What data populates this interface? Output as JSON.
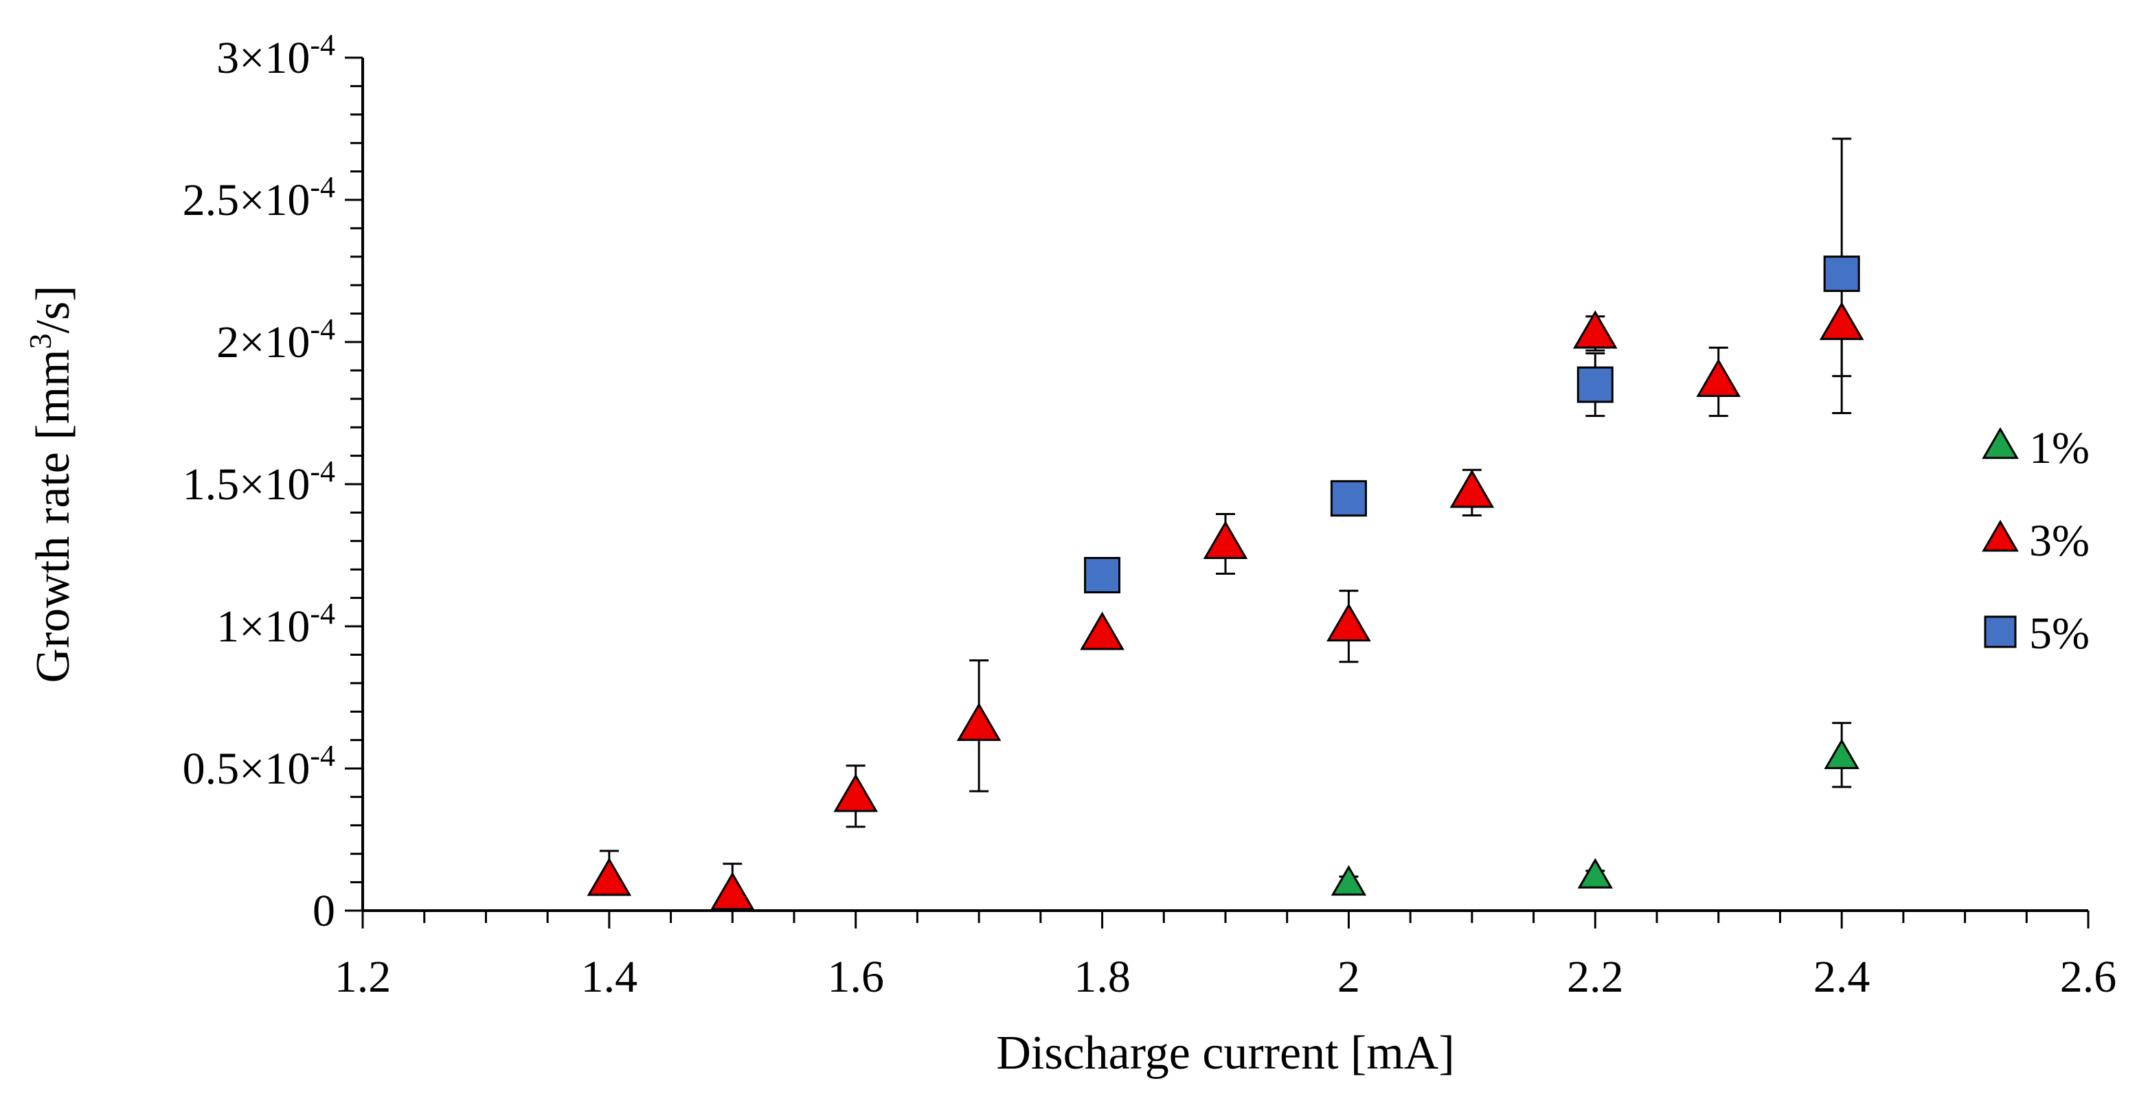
{
  "chart_data": {
    "type": "scatter",
    "xlabel": "Discharge current [mA]",
    "ylabel": {
      "prefix": "Growth rate [mm",
      "superscript": "3",
      "suffix": "/s]"
    },
    "xlim": [
      1.2,
      2.6
    ],
    "ylim": [
      0,
      0.0003
    ],
    "x_ticks": [
      {
        "value": 1.2,
        "label": "1.2"
      },
      {
        "value": 1.4,
        "label": "1.4"
      },
      {
        "value": 1.6,
        "label": "1.6"
      },
      {
        "value": 1.8,
        "label": "1.8"
      },
      {
        "value": 2.0,
        "label": "2"
      },
      {
        "value": 2.2,
        "label": "2.2"
      },
      {
        "value": 2.4,
        "label": "2.4"
      },
      {
        "value": 2.6,
        "label": "2.6"
      }
    ],
    "y_ticks": [
      {
        "value": 0,
        "mantissa": "0",
        "exponent": ""
      },
      {
        "value": 5e-05,
        "mantissa": "0.5×10",
        "exponent": "-4"
      },
      {
        "value": 0.0001,
        "mantissa": "1×10",
        "exponent": "-4"
      },
      {
        "value": 0.00015,
        "mantissa": "1.5×10",
        "exponent": "-4"
      },
      {
        "value": 0.0002,
        "mantissa": "2×10",
        "exponent": "-4"
      },
      {
        "value": 0.00025,
        "mantissa": "2.5×10",
        "exponent": "-4"
      },
      {
        "value": 0.0003,
        "mantissa": "3×10",
        "exponent": "-4"
      }
    ],
    "grid": false,
    "legend_position": "right",
    "series": [
      {
        "name": "1%",
        "marker": "triangle",
        "color": "#1aa34a",
        "points": [
          {
            "x": 2.0,
            "y": 9.5e-06,
            "err_low": 1e-06,
            "err_high": 2.5e-06
          },
          {
            "x": 2.2,
            "y": 1.2e-05,
            "err_low": 1.5e-06,
            "err_high": 2e-06
          },
          {
            "x": 2.4,
            "y": 5.4e-05,
            "err_low": 1.05e-05,
            "err_high": 1.2e-05
          }
        ]
      },
      {
        "name": "3%",
        "marker": "triangle",
        "color": "#ee0000",
        "points": [
          {
            "x": 1.4,
            "y": 1.05e-05,
            "err_low": 0,
            "err_high": 1.05e-05
          },
          {
            "x": 1.5,
            "y": 5.5e-06,
            "err_low": 0,
            "err_high": 1.1e-05
          },
          {
            "x": 1.6,
            "y": 4e-05,
            "err_low": 1.05e-05,
            "err_high": 1.1e-05
          },
          {
            "x": 1.7,
            "y": 6.5e-05,
            "err_low": 2.3e-05,
            "err_high": 2.3e-05
          },
          {
            "x": 1.8,
            "y": 9.7e-05,
            "err_low": 0,
            "err_high": 0
          },
          {
            "x": 1.9,
            "y": 0.000129,
            "err_low": 1.05e-05,
            "err_high": 1.05e-05
          },
          {
            "x": 2.0,
            "y": 0.0001,
            "err_low": 1.25e-05,
            "err_high": 1.25e-05
          },
          {
            "x": 2.1,
            "y": 0.000147,
            "err_low": 8e-06,
            "err_high": 8e-06
          },
          {
            "x": 2.2,
            "y": 0.000203,
            "err_low": 6e-06,
            "err_high": 6e-06
          },
          {
            "x": 2.3,
            "y": 0.000186,
            "err_low": 1.2e-05,
            "err_high": 1.2e-05
          },
          {
            "x": 2.4,
            "y": 0.000206,
            "err_low": 3.1e-05,
            "err_high": 0
          }
        ]
      },
      {
        "name": "5%",
        "marker": "square",
        "color": "#4472c4",
        "points": [
          {
            "x": 1.8,
            "y": 0.000118,
            "err_low": 0,
            "err_high": 0
          },
          {
            "x": 2.0,
            "y": 0.000145,
            "err_low": 6e-06,
            "err_high": 0
          },
          {
            "x": 2.2,
            "y": 0.000185,
            "err_low": 1.1e-05,
            "err_high": 1.1e-05
          },
          {
            "x": 2.4,
            "y": 0.000224,
            "err_low": 3.6e-05,
            "err_high": 4.75e-05
          }
        ]
      }
    ]
  }
}
